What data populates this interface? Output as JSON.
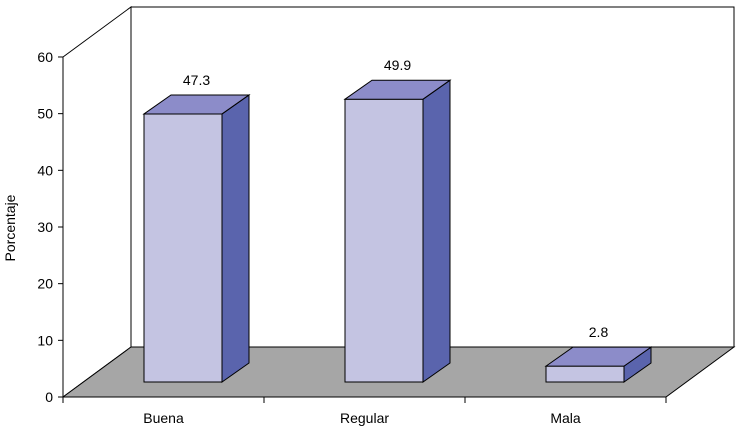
{
  "chart_data": {
    "type": "bar",
    "title": "",
    "xlabel": "",
    "ylabel": "Porcentaje",
    "ylim": [
      0,
      60
    ],
    "yticks": [
      0,
      10,
      20,
      30,
      40,
      50,
      60
    ],
    "categories": [
      "Buena",
      "Regular",
      "Mala"
    ],
    "values": [
      47.3,
      49.9,
      2.8
    ],
    "value_labels": [
      "47.3",
      "49.9",
      "2.8"
    ],
    "grid": false,
    "legend": "none",
    "style": "3d",
    "colors": {
      "bar_front": "#c4c4e2",
      "bar_top": "#8c8cc9",
      "bar_side": "#5a64ad",
      "floor": "#a6a6a6",
      "wall": "#ffffff"
    }
  }
}
